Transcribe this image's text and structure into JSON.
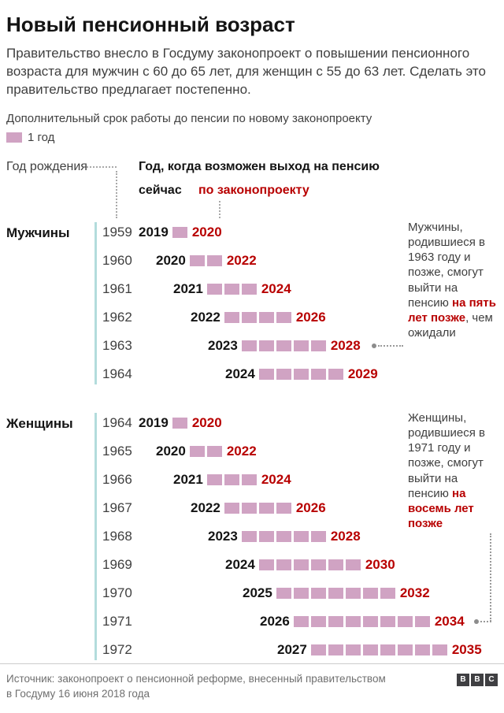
{
  "page": {
    "title": "Новый пенсионный возраст",
    "intro": "Правительство внесло в Госдуму законопроект о повышении пенсионного возраста для мужчин с 60 до 65 лет, для женщин с 55 до 63 лет. Сделать это правительство предлагает постепенно.",
    "legend": {
      "caption": "Дополнительный срок работы до пенсии по новому законопроекту",
      "swatch_label": "1 год"
    },
    "headers": {
      "birth_year": "Год рождения",
      "pension_year": "Год, когда возможен выход на пенсию",
      "now": "сейчас",
      "by_law": "по законопроекту"
    },
    "footer": {
      "source_line1": "Источник: законопроект о пенсионной реформе, внесенный правительством",
      "source_line2": "в Госдуму 16 июня 2018 года",
      "logo_letters": [
        "B",
        "B",
        "C"
      ]
    }
  },
  "colors": {
    "square_pink": "#d0a3c3",
    "accent_red": "#b80000",
    "teal_line": "#b3dcdc"
  },
  "chart_data": {
    "type": "bar",
    "title": "Новый пенсионный возраст",
    "unit": "1 квадрат = 1 год дополнительного срока работы до пенсии",
    "legend": "1 год",
    "groups": [
      {
        "label": "Мужчины",
        "rows": [
          {
            "birth_year": "1959",
            "current": "2019",
            "extra_years": 1,
            "proposed": "2020"
          },
          {
            "birth_year": "1960",
            "current": "2020",
            "extra_years": 2,
            "proposed": "2022"
          },
          {
            "birth_year": "1961",
            "current": "2021",
            "extra_years": 3,
            "proposed": "2024"
          },
          {
            "birth_year": "1962",
            "current": "2022",
            "extra_years": 4,
            "proposed": "2026"
          },
          {
            "birth_year": "1963",
            "current": "2023",
            "extra_years": 5,
            "proposed": "2028"
          },
          {
            "birth_year": "1964",
            "current": "2024",
            "extra_years": 5,
            "proposed": "2029"
          }
        ],
        "annotation": {
          "pre": "Мужчины, родившиеся в 1963 году и позже, смогут выйти на пенсию ",
          "highlight": "на пять лет позже",
          "post": ", чем ожидали",
          "connected_birth_year": "1963"
        }
      },
      {
        "label": "Женщины",
        "rows": [
          {
            "birth_year": "1964",
            "current": "2019",
            "extra_years": 1,
            "proposed": "2020"
          },
          {
            "birth_year": "1965",
            "current": "2020",
            "extra_years": 2,
            "proposed": "2022"
          },
          {
            "birth_year": "1966",
            "current": "2021",
            "extra_years": 3,
            "proposed": "2024"
          },
          {
            "birth_year": "1967",
            "current": "2022",
            "extra_years": 4,
            "proposed": "2026"
          },
          {
            "birth_year": "1968",
            "current": "2023",
            "extra_years": 5,
            "proposed": "2028"
          },
          {
            "birth_year": "1969",
            "current": "2024",
            "extra_years": 6,
            "proposed": "2030"
          },
          {
            "birth_year": "1970",
            "current": "2025",
            "extra_years": 7,
            "proposed": "2032"
          },
          {
            "birth_year": "1971",
            "current": "2026",
            "extra_years": 8,
            "proposed": "2034"
          },
          {
            "birth_year": "1972",
            "current": "2027",
            "extra_years": 8,
            "proposed": "2035"
          }
        ],
        "annotation": {
          "pre": "Женщины, родившиеся в 1971 году и позже, смогут выйти на пенсию ",
          "highlight": "на восемь лет позже",
          "post": "",
          "connected_birth_year": "1971"
        }
      }
    ]
  }
}
